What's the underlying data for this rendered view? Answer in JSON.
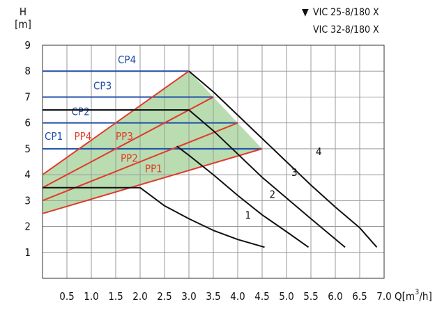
{
  "chart_data": {
    "type": "line",
    "legend": [
      "VIC 25-8/180 X",
      "VIC 32-8/180 X"
    ],
    "legend_marker": "▼",
    "y_axis": {
      "label_top": "H",
      "label_unit": "[m]",
      "ylim": [
        0,
        9
      ],
      "ticks": [
        "1",
        "2",
        "3",
        "4",
        "5",
        "6",
        "7",
        "8",
        "9"
      ]
    },
    "x_axis": {
      "label": "Q[m³/h]",
      "label_prefix": "Q[m",
      "label_sup": "3",
      "label_suffix": "/h]",
      "xlim": [
        0,
        7.0
      ],
      "ticks": [
        "0.5",
        "1.0",
        "1.5",
        "2.0",
        "2.5",
        "3.0",
        "3.5",
        "4.0",
        "4.5",
        "5.0",
        "5.5",
        "6.0",
        "6.5",
        "7.0"
      ]
    },
    "grid": true,
    "pump_curves": [
      {
        "name": "1",
        "points": [
          [
            0,
            3.5
          ],
          [
            2.0,
            3.5
          ],
          [
            2.5,
            2.8
          ],
          [
            3.0,
            2.3
          ],
          [
            3.5,
            1.85
          ],
          [
            4.0,
            1.5
          ],
          [
            4.55,
            1.2
          ]
        ]
      },
      {
        "name": "2",
        "points": [
          [
            2.75,
            5.1
          ],
          [
            3.0,
            4.75
          ],
          [
            3.5,
            4.0
          ],
          [
            4.0,
            3.2
          ],
          [
            4.5,
            2.45
          ],
          [
            5.0,
            1.8
          ],
          [
            5.45,
            1.2
          ]
        ]
      },
      {
        "name": "3",
        "points": [
          [
            0,
            6.5
          ],
          [
            3.0,
            6.5
          ],
          [
            3.5,
            5.7
          ],
          [
            4.0,
            4.8
          ],
          [
            4.5,
            3.9
          ],
          [
            5.0,
            3.1
          ],
          [
            5.5,
            2.3
          ],
          [
            6.2,
            1.2
          ]
        ]
      },
      {
        "name": "4",
        "points": [
          [
            3.0,
            8.0
          ],
          [
            3.5,
            7.2
          ],
          [
            4.0,
            6.3
          ],
          [
            4.5,
            5.4
          ],
          [
            5.0,
            4.5
          ],
          [
            5.5,
            3.6
          ],
          [
            6.0,
            2.75
          ],
          [
            6.5,
            1.95
          ],
          [
            6.85,
            1.2
          ]
        ]
      }
    ],
    "constant_pressure": [
      {
        "name": "CP1",
        "h": 5.0,
        "x_end": 4.5
      },
      {
        "name": "CP2",
        "h": 6.0,
        "x_end": 4.0
      },
      {
        "name": "CP3",
        "h": 7.0,
        "x_end": 3.5
      },
      {
        "name": "CP4",
        "h": 8.0,
        "x_end": 3.0
      }
    ],
    "proportional_pressure": [
      {
        "name": "PP1",
        "points": [
          [
            0,
            2.5
          ],
          [
            4.5,
            5.0
          ]
        ]
      },
      {
        "name": "PP2",
        "points": [
          [
            0,
            3.0
          ],
          [
            4.0,
            6.0
          ]
        ]
      },
      {
        "name": "PP3",
        "points": [
          [
            0,
            3.5
          ],
          [
            3.5,
            7.0
          ]
        ]
      },
      {
        "name": "PP4",
        "points": [
          [
            0,
            4.0
          ],
          [
            3.0,
            8.0
          ]
        ]
      }
    ],
    "shaded_region": [
      [
        0,
        2.5
      ],
      [
        4.5,
        5.0
      ],
      [
        3.0,
        8.0
      ],
      [
        0,
        4.0
      ]
    ],
    "colors": {
      "cp": "#1f4fa8",
      "pp": "#e23a2c",
      "fill": "#b9ddb0",
      "curve": "#111111",
      "grid": "#9a9a9a"
    }
  }
}
